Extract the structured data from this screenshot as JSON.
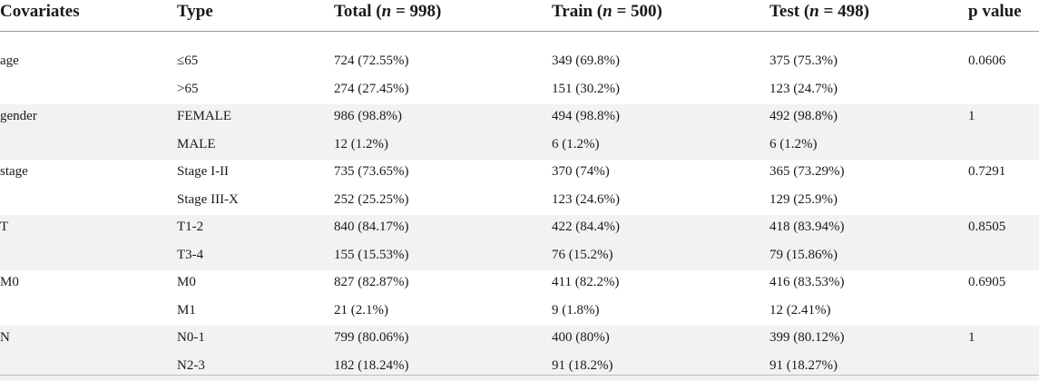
{
  "header": {
    "covariates": "Covariates",
    "type": "Type",
    "total_prefix": "Total (",
    "total_n": "n",
    "total_suffix": " = 998)",
    "train_prefix": "Train (",
    "train_n": "n",
    "train_suffix": " = 500)",
    "test_prefix": "Test (",
    "test_n": "n",
    "test_suffix": " = 498)",
    "pvalue": "p value"
  },
  "groups": [
    {
      "covariate": "age",
      "p": "0.0606",
      "rows": [
        {
          "type": "≤65",
          "total": "724 (72.55%)",
          "train": "349 (69.8%)",
          "test": "375 (75.3%)"
        },
        {
          "type": ">65",
          "total": "274 (27.45%)",
          "train": "151 (30.2%)",
          "test": "123 (24.7%)"
        }
      ]
    },
    {
      "covariate": "gender",
      "p": "1",
      "rows": [
        {
          "type": "FEMALE",
          "total": "986 (98.8%)",
          "train": "494 (98.8%)",
          "test": "492 (98.8%)"
        },
        {
          "type": "MALE",
          "total": "12 (1.2%)",
          "train": "6 (1.2%)",
          "test": "6 (1.2%)"
        }
      ]
    },
    {
      "covariate": "stage",
      "p": "0.7291",
      "rows": [
        {
          "type": "Stage I-II",
          "total": "735 (73.65%)",
          "train": "370 (74%)",
          "test": "365 (73.29%)"
        },
        {
          "type": "Stage III-X",
          "total": "252 (25.25%)",
          "train": "123 (24.6%)",
          "test": "129 (25.9%)"
        }
      ]
    },
    {
      "covariate": "T",
      "p": "0.8505",
      "rows": [
        {
          "type": "T1-2",
          "total": "840 (84.17%)",
          "train": "422 (84.4%)",
          "test": "418 (83.94%)"
        },
        {
          "type": "T3-4",
          "total": "155 (15.53%)",
          "train": "76 (15.2%)",
          "test": "79 (15.86%)"
        }
      ]
    },
    {
      "covariate": "M0",
      "p": "0.6905",
      "rows": [
        {
          "type": "M0",
          "total": "827 (82.87%)",
          "train": "411 (82.2%)",
          "test": "416 (83.53%)"
        },
        {
          "type": "M1",
          "total": "21 (2.1%)",
          "train": "9 (1.8%)",
          "test": "12 (2.41%)"
        }
      ]
    },
    {
      "covariate": "N",
      "p": "1",
      "rows": [
        {
          "type": "N0-1",
          "total": "799 (80.06%)",
          "train": "400 (80%)",
          "test": "399 (80.12%)"
        },
        {
          "type": "N2-3",
          "total": "182 (18.24%)",
          "train": "91 (18.2%)",
          "test": "91 (18.27%)"
        }
      ]
    }
  ]
}
